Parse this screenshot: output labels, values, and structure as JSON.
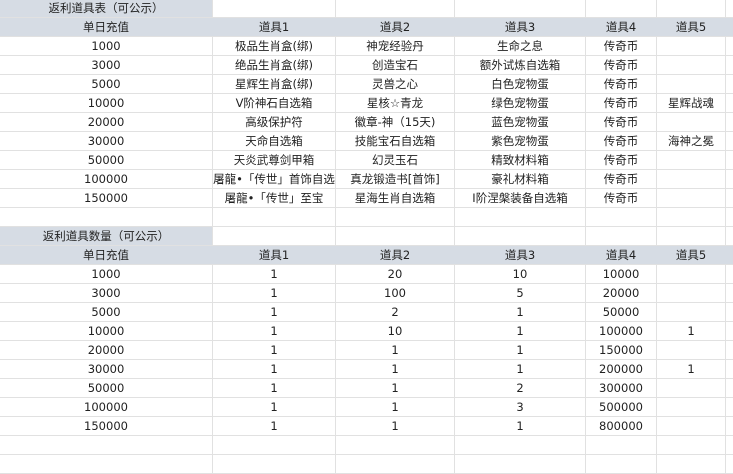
{
  "table1": {
    "title": "返利道具表（可公示）",
    "headers": [
      "单日充值",
      "道具1",
      "道具2",
      "道具3",
      "道具4",
      "道具5"
    ],
    "rows": [
      [
        "1000",
        "极品生肖盒(绑)",
        "神宠经验丹",
        "生命之息",
        "传奇币",
        ""
      ],
      [
        "3000",
        "绝品生肖盒(绑)",
        "创造宝石",
        "额外试炼自选箱",
        "传奇币",
        ""
      ],
      [
        "5000",
        "星辉生肖盒(绑)",
        "灵兽之心",
        "白色宠物蛋",
        "传奇币",
        ""
      ],
      [
        "10000",
        "V阶神石自选箱",
        "星核☆青龙",
        "绿色宠物蛋",
        "传奇币",
        "星辉战魂"
      ],
      [
        "20000",
        "高级保护符",
        "徽章-神（15天)",
        "蓝色宠物蛋",
        "传奇币",
        ""
      ],
      [
        "30000",
        "天命自选箱",
        "技能宝石自选箱",
        "紫色宠物蛋",
        "传奇币",
        "海神之冕"
      ],
      [
        "50000",
        "天炎武尊剑甲箱",
        "幻灵玉石",
        "精致材料箱",
        "传奇币",
        ""
      ],
      [
        "100000",
        "屠龍•「传世」首饰自选",
        "真龙锻造书[首饰]",
        "豪礼材料箱",
        "传奇币",
        ""
      ],
      [
        "150000",
        "屠龍•「传世」至宝",
        "星海生肖自选箱",
        "Ⅰ阶涅槃装备自选箱",
        "传奇币",
        ""
      ]
    ]
  },
  "table2": {
    "title": "返利道具数量（可公示）",
    "headers": [
      "单日充值",
      "道具1",
      "道具2",
      "道具3",
      "道具4",
      "道具5"
    ],
    "rows": [
      [
        "1000",
        "1",
        "20",
        "10",
        "10000",
        ""
      ],
      [
        "3000",
        "1",
        "100",
        "5",
        "20000",
        ""
      ],
      [
        "5000",
        "1",
        "2",
        "1",
        "50000",
        ""
      ],
      [
        "10000",
        "1",
        "10",
        "1",
        "100000",
        "1"
      ],
      [
        "20000",
        "1",
        "1",
        "1",
        "150000",
        ""
      ],
      [
        "30000",
        "1",
        "1",
        "1",
        "200000",
        "1"
      ],
      [
        "50000",
        "1",
        "1",
        "2",
        "300000",
        ""
      ],
      [
        "100000",
        "1",
        "1",
        "3",
        "500000",
        ""
      ],
      [
        "150000",
        "1",
        "1",
        "1",
        "800000",
        ""
      ]
    ]
  }
}
